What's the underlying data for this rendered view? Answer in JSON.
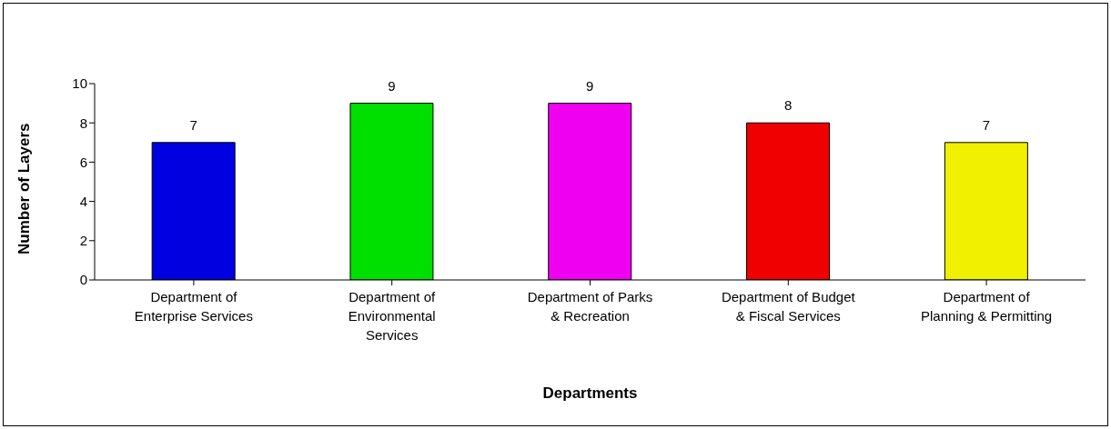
{
  "chart_data": {
    "type": "bar",
    "xlabel": "Departments",
    "ylabel": "Number of Layers",
    "categories": [
      "Department of Enterprise Services",
      "Department of Environmental Services",
      "Department of Parks & Recreation",
      "Department of Budget & Fiscal Services",
      "Department of Planning & Permitting"
    ],
    "values": [
      7,
      9,
      9,
      8,
      7
    ],
    "colors": [
      "#0000e0",
      "#00e000",
      "#f000f0",
      "#f00000",
      "#f0f000"
    ],
    "ylim": [
      0,
      10
    ],
    "yticks": [
      0,
      2,
      4,
      6,
      8,
      10
    ],
    "grid": false,
    "data_labels": true
  }
}
